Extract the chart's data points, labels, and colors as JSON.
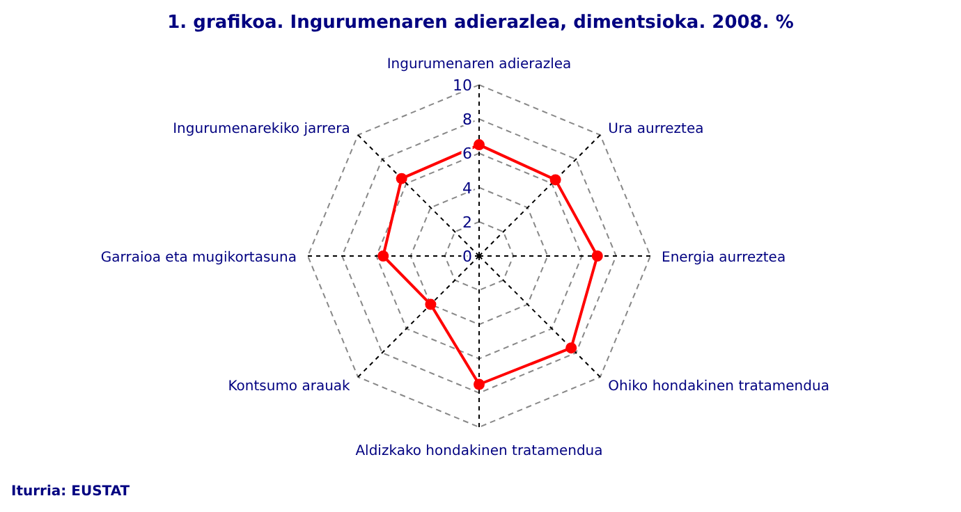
{
  "chart_data": {
    "type": "radar",
    "title": "1. grafikoa. Ingurumenaren adierazlea, dimentsioka. 2008. %",
    "categories": [
      "Ingurumenaren adierazlea",
      "Ura aurreztea",
      "Energia aurreztea",
      "Ohiko hondakinen tratamendua",
      "Aldizkako hondakinen tratamendua",
      "Kontsumo arauak",
      "Garraioa eta mugikortasuna",
      "Ingurumenarekiko jarrera"
    ],
    "series": [
      {
        "color": "#ff0000",
        "values": [
          6.5,
          6.3,
          6.9,
          7.6,
          7.5,
          4.0,
          5.6,
          6.4
        ]
      }
    ],
    "ylim": [
      0,
      10
    ],
    "yticks": [
      0,
      2,
      4,
      6,
      8,
      10
    ],
    "grid": true,
    "marker": "circle",
    "annotations": [
      "Iturria: EUSTAT"
    ]
  }
}
